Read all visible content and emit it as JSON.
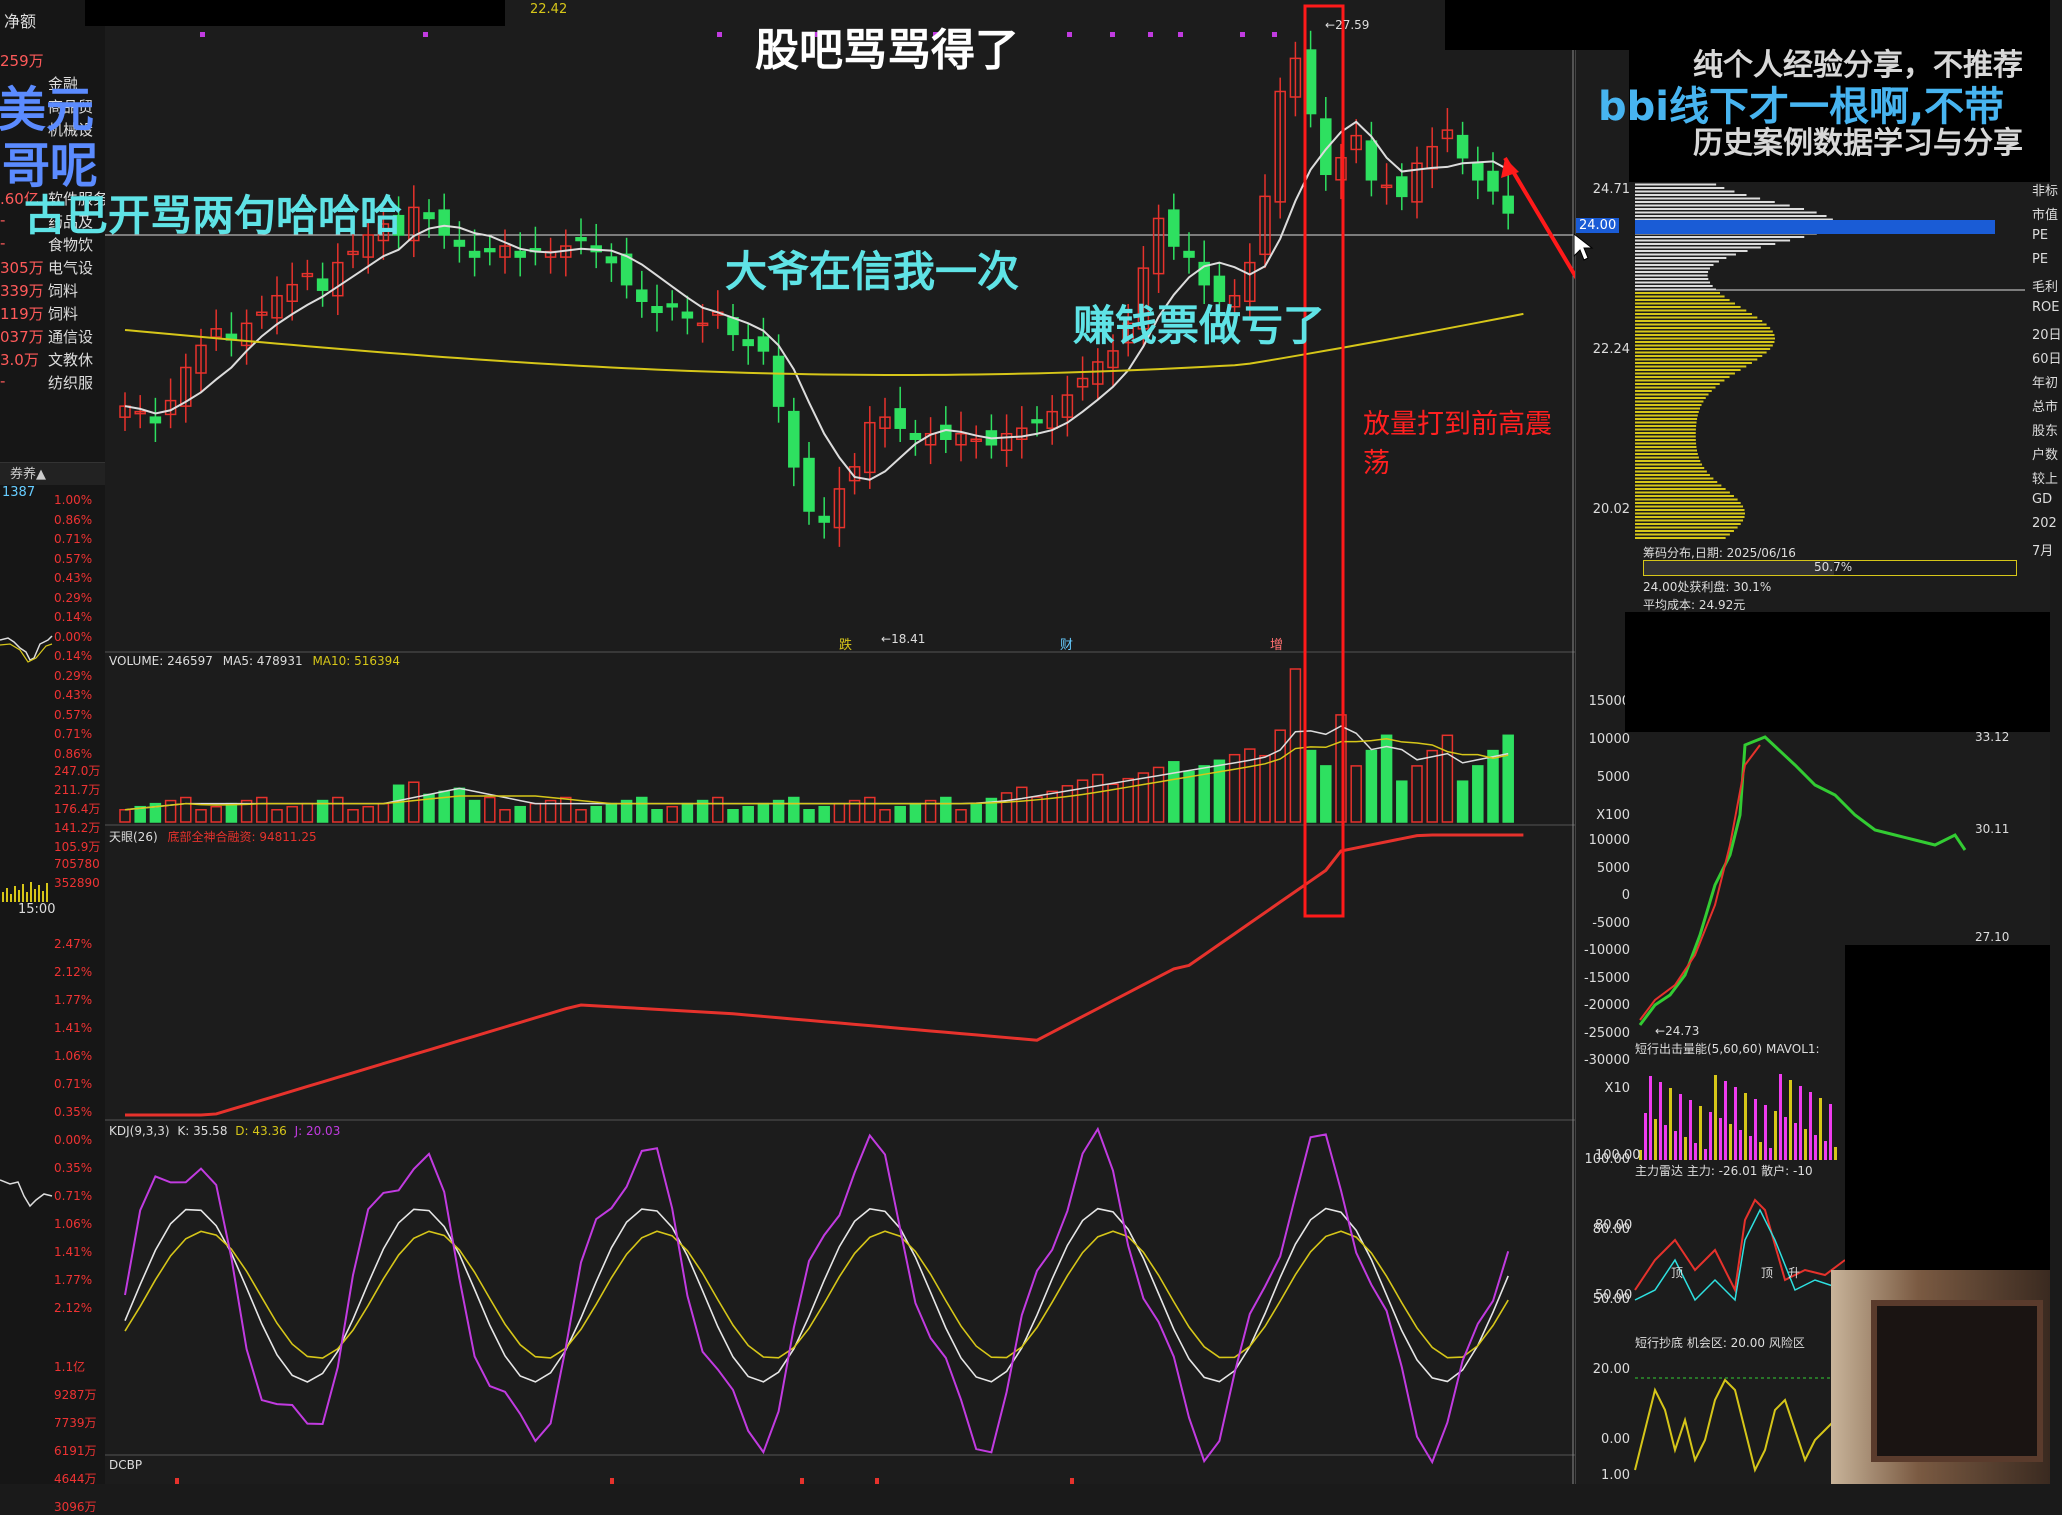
{
  "top_label": "22.42",
  "overlays": {
    "title": "股吧骂骂得了",
    "left_big1": "美元",
    "left_big2": "哥呢",
    "gubakai": "古巴开骂两句哈哈哈",
    "daye": "大爷在信我一次",
    "zhuanqian": "赚钱票做亏了",
    "bbi": "bbi线下才一根啊,不带",
    "annotation_red": "放量打到前高震荡",
    "right_top1": "纯个人经验分享，不推荐",
    "right_top2": "历史案例数据学习与分享"
  },
  "left_panel": {
    "header": "净额",
    "rows": [
      {
        "num": "259万",
        "txt": ""
      },
      {
        "num": "",
        "txt": "金融"
      },
      {
        "num": "",
        "txt": "商品贸"
      },
      {
        "num": "",
        "txt": "机械设"
      },
      {
        "num": "",
        "txt": ""
      },
      {
        "num": "",
        "txt": ""
      },
      {
        "num": ".60亿",
        "txt": "软件服务"
      },
      {
        "num": "-",
        "txt": "药品及"
      },
      {
        "num": "-",
        "txt": "食物饮"
      },
      {
        "num": "305万",
        "txt": "电气设"
      },
      {
        "num": "339万",
        "txt": "饲料"
      },
      {
        "num": "119万",
        "txt": "饲料"
      },
      {
        "num": "037万",
        "txt": "通信设"
      },
      {
        "num": "3.0万",
        "txt": "文教休"
      },
      {
        "num": "-",
        "txt": "纺织服"
      }
    ],
    "small_label": "1387",
    "pct_scale": [
      "1.00%",
      "0.86%",
      "0.71%",
      "0.57%",
      "0.43%",
      "0.29%",
      "0.14%",
      "0.00%",
      "0.14%",
      "0.29%",
      "0.43%",
      "0.57%",
      "0.71%",
      "0.86%"
    ],
    "vol_scale": [
      "247.0万",
      "211.7万",
      "176.4万",
      "141.2万",
      "105.9万",
      "705780",
      "352890"
    ],
    "time": "15:00",
    "pct_scale2": [
      "2.47%",
      "2.12%",
      "1.77%",
      "1.41%",
      "1.06%",
      "0.71%",
      "0.35%",
      "0.00%",
      "0.35%",
      "0.71%",
      "1.06%",
      "1.41%",
      "1.77%",
      "2.12%"
    ],
    "vol_scale2": [
      "1.1亿",
      "9287万",
      "7739万",
      "6191万",
      "4644万",
      "3096万"
    ]
  },
  "price_axis": [
    "24.71",
    "24.00",
    "22.24",
    "20.02"
  ],
  "price_annot": {
    "high": "27.59",
    "low": "18.41"
  },
  "markers": [
    "跌",
    "财",
    "增"
  ],
  "volume_header": {
    "label": "VOLUME: 246597",
    "ma5": "MA5: 478931",
    "ma10": "MA10: 516394"
  },
  "volume_axis": [
    "15000",
    "10000",
    "5000",
    "X100"
  ],
  "fund_header": {
    "label": "天眼(26)",
    "value": "底部全神合融资: 94811.25"
  },
  "fund_axis": [
    "10000",
    "5000",
    "0",
    "-5000",
    "-10000",
    "-15000",
    "-20000",
    "-25000",
    "-30000",
    "X10"
  ],
  "kdj_header": {
    "label": "KDJ(9,3,3)",
    "k": "K: 35.58",
    "d": "D: 43.36",
    "j": "J: 20.03"
  },
  "kdj_axis": [
    "100.00",
    "80.00",
    "50.00",
    "20.00",
    "0.00"
  ],
  "dcbp_label": "DCBP",
  "dcbp_axis": "1.00",
  "right_panel": {
    "price_labels": [
      "24.71",
      "24.00",
      "22.24",
      "20.02"
    ],
    "side_labels": [
      "非标",
      "市值",
      "PE",
      "PE",
      "毛利",
      "ROE",
      "20日",
      "60日",
      "年初",
      "总市",
      "股东",
      "户数",
      "较上",
      "GD",
      "202",
      "7月"
    ],
    "chip_date": "筹码分布,日期: 2025/06/16",
    "chip_pct": "50.7%",
    "chip_profit": "24.00处获利盘: 30.1%",
    "chip_cost": "平均成本: 24.92元",
    "mini_chart_axis": [
      "33.12",
      "30.11",
      "27.10"
    ],
    "mini_low": "24.73",
    "vol_ind": "短行出击量能(5,60,60) MAVOL1:",
    "main_force": "主力雷达  主力: -26.01  散户: -10",
    "main_force_axis": [
      "100.00",
      "80.00",
      "50.00"
    ],
    "tags": [
      "顶",
      "顶",
      "升"
    ],
    "chaodi": "短行抄底  机会区: 20.00  风险区",
    "chaodi_axis": [
      "20.00",
      "0.00"
    ]
  },
  "colors": {
    "up": "#e6322c",
    "down": "#2ee060",
    "bbi": "#dcdcdc",
    "yellow": "#d6c619",
    "purple": "#c13be0"
  }
}
